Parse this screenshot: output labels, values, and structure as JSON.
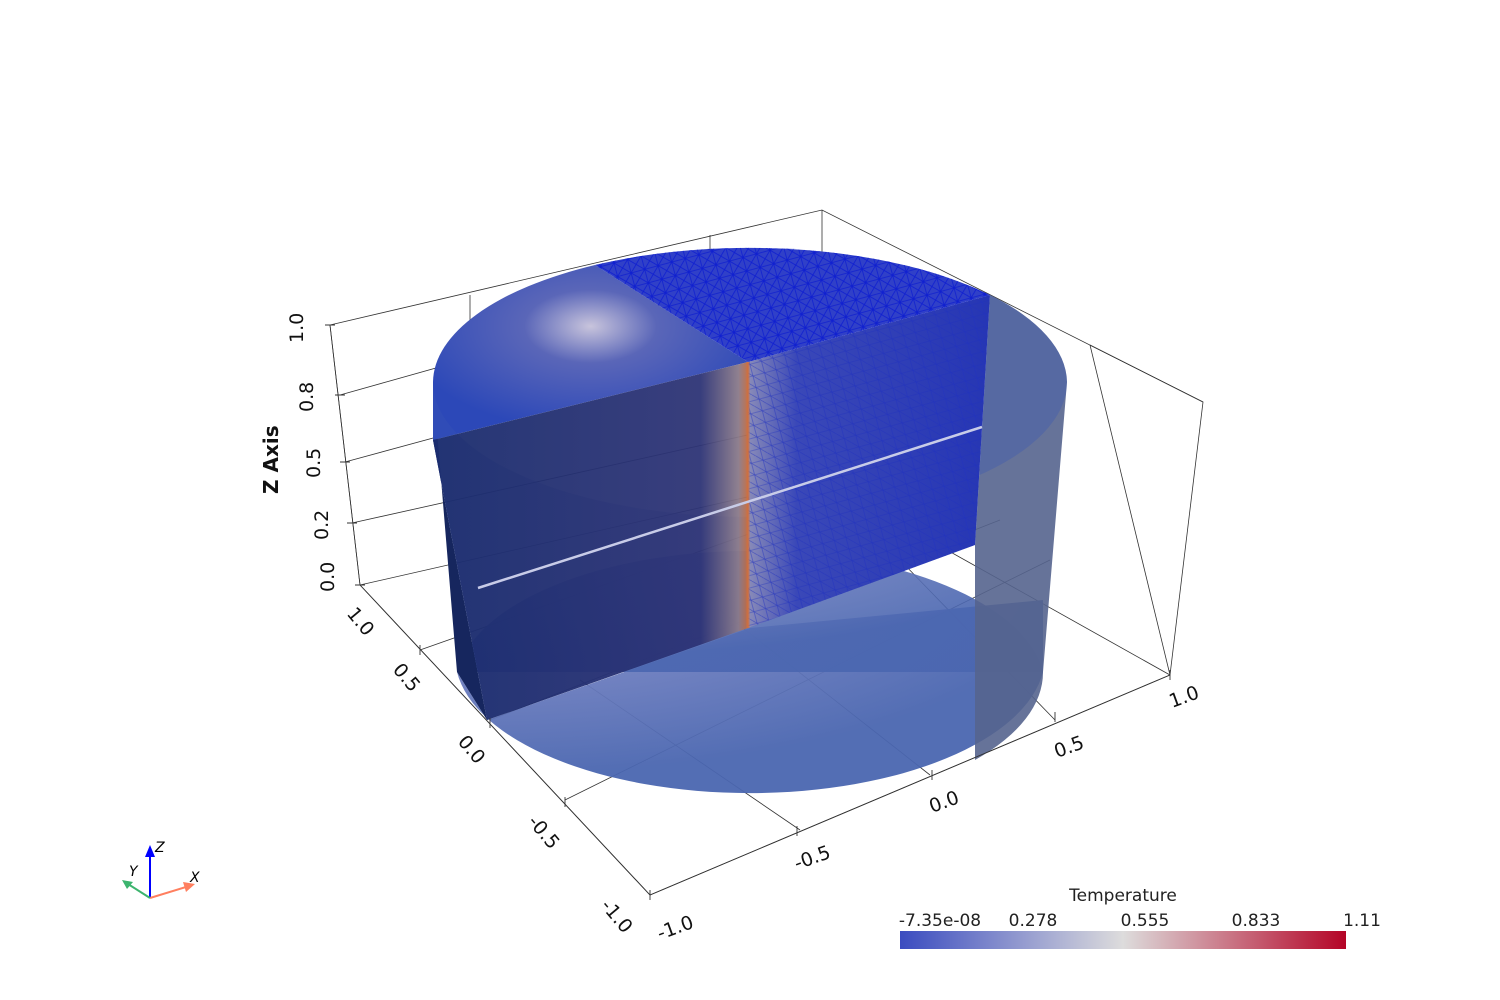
{
  "scene": {
    "z_axis": {
      "title": "Z Axis",
      "ticks": [
        "1.0",
        "0.8",
        "0.5",
        "0.2",
        "0.0"
      ]
    },
    "y_axis": {
      "ticks": [
        "1.0",
        "0.5",
        "0.0",
        "-0.5",
        "-1.0"
      ]
    },
    "x_axis": {
      "ticks": [
        "-1.0",
        "-0.5",
        "0.0",
        "0.5",
        "1.0"
      ]
    },
    "mesh_color": "#1020d0"
  },
  "colorbar": {
    "title": "Temperature",
    "labels": [
      "-7.35e-08",
      "0.278",
      "0.555",
      "0.833",
      "1.11"
    ],
    "colors": [
      "#3b4cc0",
      "#dddcdc",
      "#b40426"
    ]
  },
  "orientation_widget": {
    "x": "X",
    "y": "Y",
    "z": "Z",
    "x_color": "#ff7f5f",
    "y_color": "#3cb46e",
    "z_color": "#0000ff"
  }
}
